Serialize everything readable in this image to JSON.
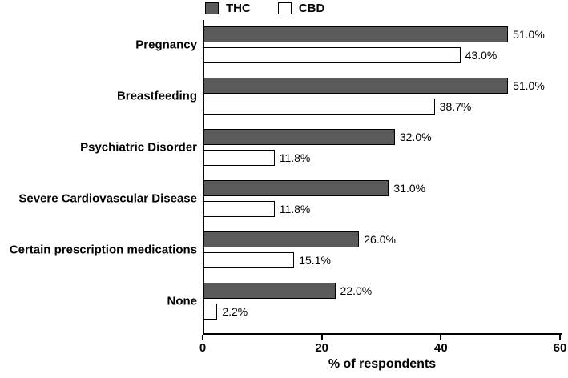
{
  "figure": {
    "background": "#ffffff",
    "bar_border_color": "#000000"
  },
  "legend": {
    "items": [
      {
        "label": "THC",
        "swatch_color": "#5a5a5a",
        "swatch_border": "#000000"
      },
      {
        "label": "CBD",
        "swatch_color": "#ffffff",
        "swatch_border": "#000000"
      }
    ]
  },
  "chart_data": {
    "type": "bar",
    "orientation": "horizontal",
    "title": "",
    "xlabel": "% of respondents",
    "ylabel": "",
    "xlim": [
      0,
      60
    ],
    "xticks": [
      0,
      20,
      40,
      60
    ],
    "xtick_labels": [
      "0",
      "20",
      "40",
      "60"
    ],
    "grid": false,
    "legend_position": "top",
    "categories": [
      "Pregnancy",
      "Breastfeeding",
      "Psychiatric Disorder",
      "Severe Cardiovascular Disease",
      "Certain prescription medications",
      "None"
    ],
    "series": [
      {
        "name": "THC",
        "color": "#5a5a5a",
        "values": [
          51.0,
          51.0,
          32.0,
          31.0,
          26.0,
          22.0
        ],
        "labels": [
          "51.0%",
          "51.0%",
          "32.0%",
          "31.0%",
          "26.0%",
          "22.0%"
        ]
      },
      {
        "name": "CBD",
        "color": "#ffffff",
        "values": [
          43.0,
          38.7,
          11.8,
          11.8,
          15.1,
          2.2
        ],
        "labels": [
          "43.0%",
          "38.7%",
          "11.8%",
          "11.8%",
          "15.1%",
          "2.2%"
        ]
      }
    ]
  }
}
